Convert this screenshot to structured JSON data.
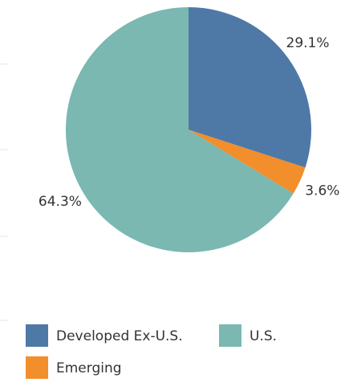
{
  "chart_data": {
    "type": "pie",
    "categories": [
      "Developed Ex-U.S.",
      "Emerging",
      "U.S."
    ],
    "values": [
      29.1,
      3.6,
      64.3
    ],
    "value_labels": [
      "29.1%",
      "3.6%",
      "64.3%"
    ],
    "colors": [
      "#4e79a7",
      "#f28e2b",
      "#7ab8b1"
    ]
  }
}
